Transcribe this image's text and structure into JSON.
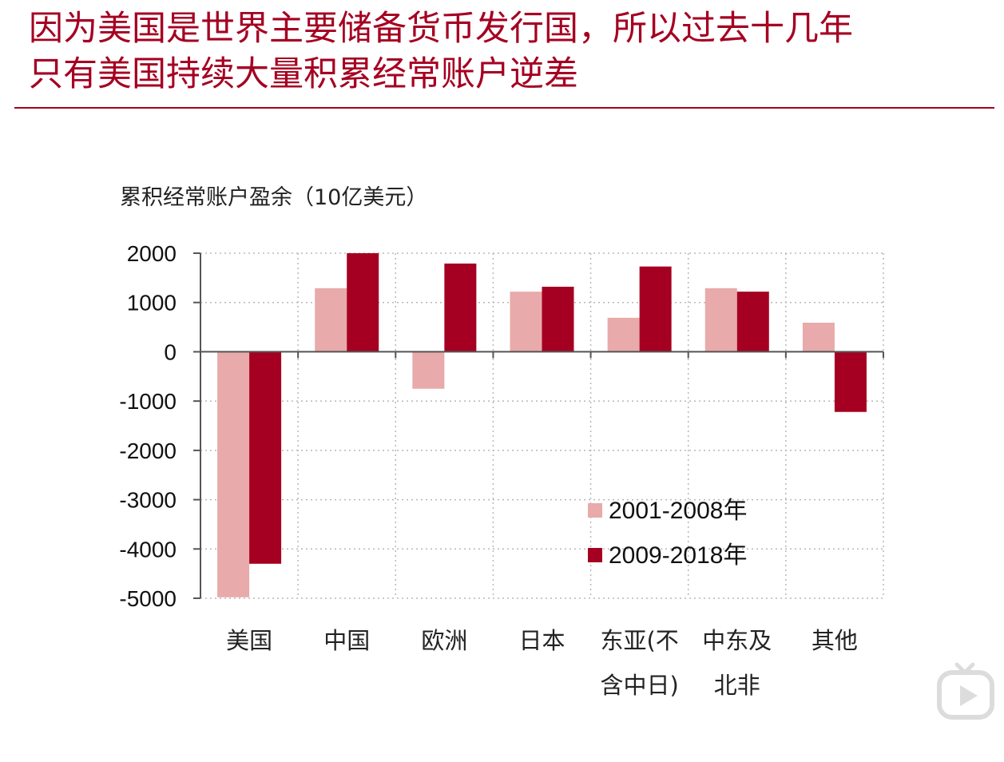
{
  "slide": {
    "title_lines": [
      "因为美国是世界主要储备货币发行国，所以过去十几年",
      "只有美国持续大量积累经常账户逆差"
    ]
  },
  "chart_data": {
    "type": "bar",
    "ylabel": "累积经常账户盈余（10亿美元）",
    "ylim": [
      -5000,
      2000
    ],
    "yticks": [
      2000,
      1000,
      0,
      -1000,
      -2000,
      -3000,
      -4000,
      -5000
    ],
    "categories": [
      [
        "美国"
      ],
      [
        "中国"
      ],
      [
        "欧洲"
      ],
      [
        "日本"
      ],
      [
        "东亚(不",
        "含中日)"
      ],
      [
        "中东及",
        "北非"
      ],
      [
        "其他"
      ]
    ],
    "series": [
      {
        "name": "2001-2008年",
        "color": "#e8aaaa",
        "values": [
          -4980,
          1290,
          -750,
          1220,
          690,
          1290,
          590
        ]
      },
      {
        "name": "2009-2018年",
        "color": "#a50021",
        "values": [
          -4300,
          2000,
          1790,
          1320,
          1730,
          1220,
          -1220
        ]
      }
    ],
    "grid": true,
    "legend_position": "lower-right"
  },
  "icons": {
    "watermark": "weibo-video-play-icon"
  }
}
